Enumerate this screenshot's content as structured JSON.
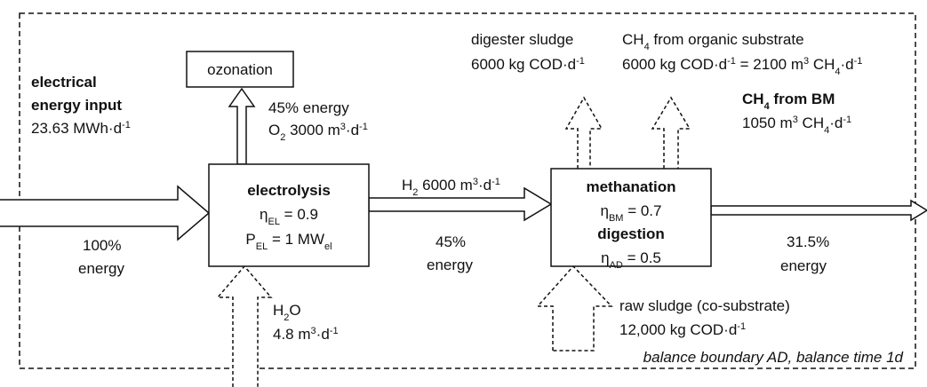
{
  "boundary_label": "balance boundary AD, balance time 1d",
  "input": {
    "title": [
      "electrical",
      "energy input"
    ],
    "value": [
      "23.63 MWh·d",
      "-1"
    ],
    "share": [
      "100%",
      "energy"
    ]
  },
  "ozonation": {
    "label": "ozonation",
    "share": "45% energy",
    "flow": [
      "O",
      "2",
      " 3000 m",
      "3",
      "·d",
      "-1"
    ]
  },
  "electrolysis": {
    "title": "electrolysis",
    "efficiency": [
      "η",
      "EL",
      " = 0.9"
    ],
    "power": [
      "P",
      "EL",
      " = 1 MW",
      "el"
    ]
  },
  "water": {
    "label": [
      "H",
      "2",
      "O"
    ],
    "flow": [
      "4.8 m",
      "3",
      "·d",
      "-1"
    ]
  },
  "hydrogen": {
    "flow": [
      "H",
      "2",
      " 6000 m",
      "3",
      "·d",
      "-1"
    ],
    "share": [
      "45%",
      "energy"
    ]
  },
  "reactor": {
    "methanation": "methanation",
    "bm_efficiency": [
      "η",
      "BM",
      " = 0.7"
    ],
    "digestion": "digestion",
    "ad_efficiency": [
      "η",
      "AD",
      " = 0.5"
    ]
  },
  "digester_sludge": {
    "label": "digester sludge",
    "flow": [
      "6000 kg COD·d",
      "-1"
    ]
  },
  "organic_methane": {
    "label": [
      "CH",
      "4",
      " from organic substrate"
    ],
    "flow": [
      "6000 kg COD·d",
      "-1",
      " = 2100 m",
      "3",
      " CH",
      "4",
      "·d",
      "-1"
    ]
  },
  "raw_sludge": {
    "label": "raw sludge (co-substrate)",
    "flow": [
      "12,000 kg COD·d",
      "-1"
    ]
  },
  "output": {
    "title": [
      "CH",
      "4",
      " from BM"
    ],
    "flow": [
      "1050 m",
      "3",
      " CH",
      "4",
      "·d",
      "-1"
    ],
    "share": [
      "31.5%",
      "energy"
    ]
  }
}
